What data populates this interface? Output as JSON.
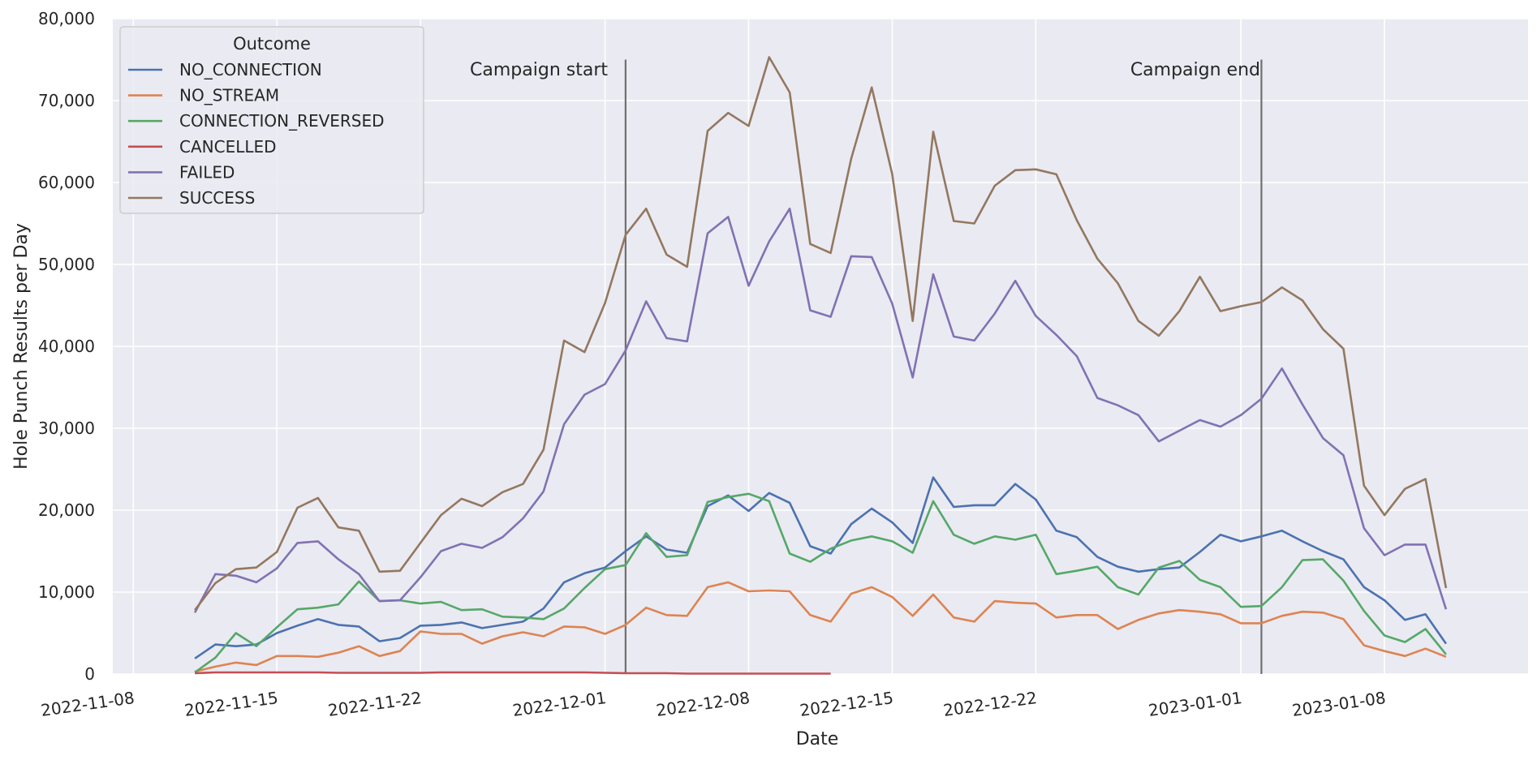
{
  "chart_data": {
    "type": "line",
    "title": "",
    "xlabel": "Date",
    "ylabel": "Hole Punch Results per Day",
    "ylim": [
      0,
      80000
    ],
    "xlim": [
      "2022-11-07",
      "2023-01-15"
    ],
    "yticks": [
      0,
      10000,
      20000,
      30000,
      40000,
      50000,
      60000,
      70000,
      80000
    ],
    "ytick_labels": [
      "0",
      "10,000",
      "20,000",
      "30,000",
      "40,000",
      "50,000",
      "60,000",
      "70,000",
      "80,000"
    ],
    "xticks": [
      "2022-11-08",
      "2022-11-15",
      "2022-11-22",
      "2022-12-01",
      "2022-12-08",
      "2022-12-15",
      "2022-12-22",
      "2023-01-01",
      "2023-01-08"
    ],
    "grid": true,
    "background": "#eaeaf2",
    "legend": {
      "title": "Outcome",
      "placement": "upper left"
    },
    "annotations": [
      {
        "date": "2022-12-02",
        "label": "Campaign start"
      },
      {
        "date": "2023-01-02",
        "label": "Campaign end"
      }
    ],
    "annotation_line_max": 75000,
    "x_start": "2022-11-11",
    "series": [
      {
        "name": "NO_CONNECTION",
        "color": "#4c72b0",
        "values": [
          1900,
          3600,
          3400,
          3600,
          5000,
          5900,
          6700,
          6000,
          5800,
          4000,
          4400,
          5900,
          6000,
          6300,
          5600,
          6000,
          6400,
          8000,
          11200,
          12300,
          13000,
          15000,
          16800,
          15200,
          14800,
          20500,
          21800,
          19900,
          22100,
          20900,
          15600,
          14700,
          18300,
          20200,
          18500,
          16000,
          24000,
          20400,
          20600,
          20600,
          23200,
          21300,
          17500,
          16700,
          14300,
          13100,
          12500,
          12800,
          13000,
          14900,
          17000,
          16200,
          16800,
          17500,
          16200,
          15000,
          14000,
          10600,
          9000,
          6600,
          7300,
          3700
        ]
      },
      {
        "name": "NO_STREAM",
        "color": "#dd8452",
        "values": [
          300,
          900,
          1400,
          1100,
          2200,
          2200,
          2100,
          2600,
          3400,
          2200,
          2800,
          5200,
          4900,
          4900,
          3700,
          4600,
          5100,
          4600,
          5800,
          5700,
          4900,
          6000,
          8100,
          7200,
          7100,
          10600,
          11200,
          10100,
          10200,
          10100,
          7200,
          6400,
          9800,
          10600,
          9400,
          7100,
          9700,
          6900,
          6400,
          8900,
          8700,
          8600,
          6900,
          7200,
          7200,
          5500,
          6600,
          7400,
          7800,
          7600,
          7300,
          6200,
          6200,
          7100,
          7600,
          7500,
          6700,
          3500,
          2800,
          2200,
          3100,
          2100
        ]
      },
      {
        "name": "CONNECTION_REVERSED",
        "color": "#55a868",
        "values": [
          200,
          2000,
          5000,
          3400,
          5700,
          7900,
          8100,
          8500,
          11300,
          8900,
          9000,
          8600,
          8800,
          7800,
          7900,
          7000,
          6900,
          6700,
          8000,
          10500,
          12800,
          13300,
          17200,
          14300,
          14500,
          21000,
          21600,
          22000,
          21100,
          14700,
          13700,
          15300,
          16300,
          16800,
          16200,
          14800,
          21100,
          17000,
          15900,
          16800,
          16400,
          17000,
          12200,
          12600,
          13100,
          10600,
          9700,
          13000,
          13800,
          11500,
          10600,
          8200,
          8300,
          10600,
          13900,
          14000,
          11400,
          7700,
          4700,
          3900,
          5500,
          2400
        ]
      },
      {
        "name": "CANCELLED",
        "color": "#c44e52",
        "values": [
          100,
          200,
          200,
          200,
          200,
          200,
          200,
          150,
          150,
          150,
          150,
          150,
          200,
          200,
          200,
          200,
          200,
          200,
          200,
          200,
          150,
          100,
          100,
          100,
          50,
          50,
          50,
          50,
          50,
          50,
          50,
          50
        ]
      },
      {
        "name": "FAILED",
        "color": "#8172b3",
        "values": [
          7500,
          12200,
          12000,
          11200,
          12900,
          16000,
          16200,
          14000,
          12200,
          8900,
          9000,
          11800,
          15000,
          15900,
          15400,
          16700,
          19000,
          22300,
          30500,
          34100,
          35400,
          39500,
          45500,
          41000,
          40600,
          53800,
          55800,
          47400,
          52800,
          56800,
          44400,
          43600,
          51000,
          50900,
          45200,
          36200,
          48800,
          41200,
          40700,
          44000,
          48000,
          43700,
          41400,
          38800,
          33700,
          32800,
          31600,
          28400,
          29700,
          31000,
          30200,
          31600,
          33600,
          37300,
          32900,
          28800,
          26700,
          17800,
          14500,
          15800,
          15800,
          7900
        ]
      },
      {
        "name": "SUCCESS",
        "color": "#937860",
        "values": [
          7800,
          11100,
          12800,
          13000,
          14900,
          20300,
          21500,
          17900,
          17500,
          12500,
          12600,
          16000,
          19400,
          21400,
          20500,
          22200,
          23200,
          27400,
          40700,
          39300,
          45300,
          53600,
          56800,
          51200,
          49700,
          66300,
          68500,
          66900,
          75300,
          71000,
          52500,
          51400,
          62900,
          71600,
          61000,
          43100,
          66200,
          55300,
          55000,
          59600,
          61500,
          61600,
          61000,
          55400,
          50700,
          47700,
          43100,
          41300,
          44300,
          48500,
          44300,
          44900,
          45400,
          47200,
          45600,
          42100,
          39700,
          23000,
          19400,
          22600,
          23800,
          10500
        ]
      }
    ]
  }
}
